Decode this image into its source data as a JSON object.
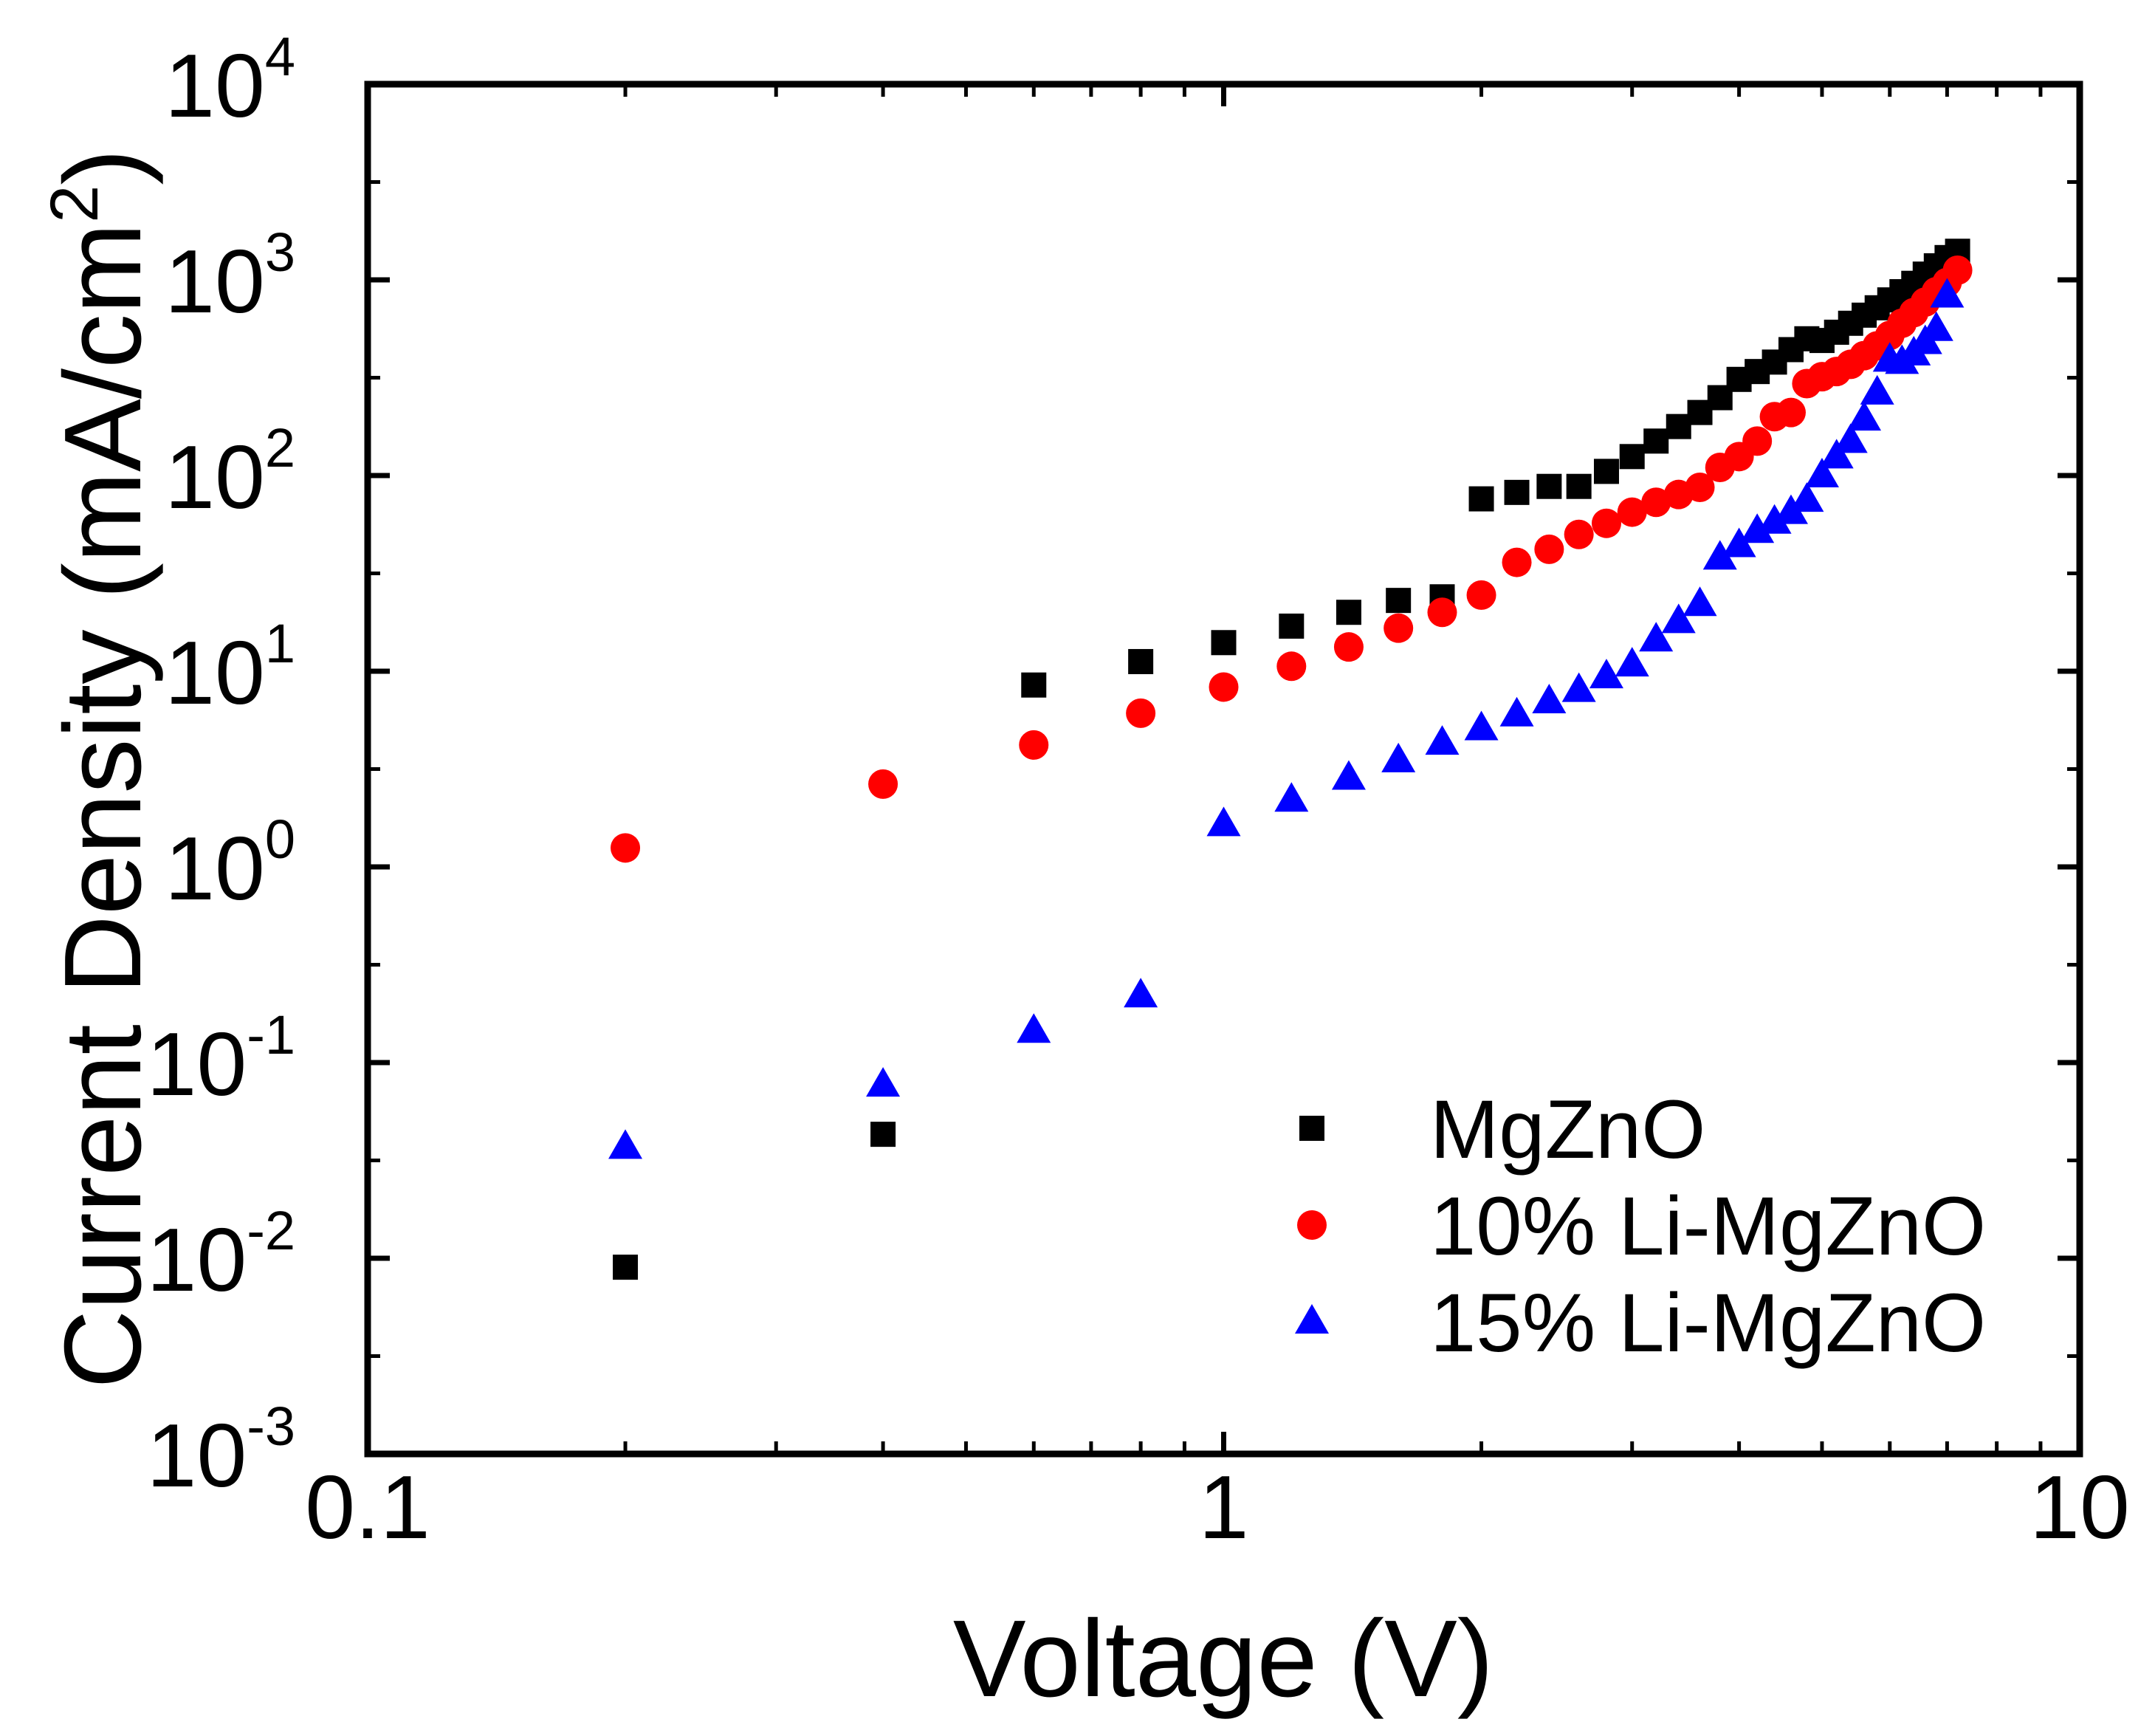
{
  "chart_data": {
    "type": "scatter",
    "title": "",
    "xlabel": "Voltage (V)",
    "ylabel": {
      "prefix": "Current Density (mA/cm",
      "superscript": "2",
      "suffix": ")"
    },
    "xscale": "log",
    "yscale": "log",
    "xlim": [
      0.1,
      10
    ],
    "ylim": [
      0.001,
      10000
    ],
    "x_ticks": [
      {
        "value": 0.1,
        "label": "0.1"
      },
      {
        "value": 1,
        "label": "1"
      },
      {
        "value": 10,
        "label": "10"
      }
    ],
    "y_ticks": [
      {
        "value": 0.001,
        "base": "10",
        "exp": "-3"
      },
      {
        "value": 0.01,
        "base": "10",
        "exp": "-2"
      },
      {
        "value": 0.1,
        "base": "10",
        "exp": "-1"
      },
      {
        "value": 1,
        "base": "10",
        "exp": "0"
      },
      {
        "value": 10,
        "base": "10",
        "exp": "1"
      },
      {
        "value": 100,
        "base": "10",
        "exp": "2"
      },
      {
        "value": 1000,
        "base": "10",
        "exp": "3"
      },
      {
        "value": 10000,
        "base": "10",
        "exp": "4"
      }
    ],
    "grid": false,
    "legend_position": "bottom-right",
    "series": [
      {
        "name": "MgZnO",
        "marker": "square",
        "color": "#000000",
        "points": [
          [
            0.2,
            0.009
          ],
          [
            0.4,
            0.043
          ],
          [
            0.6,
            8.5
          ],
          [
            0.8,
            11.2
          ],
          [
            1.0,
            14
          ],
          [
            1.2,
            17
          ],
          [
            1.4,
            20
          ],
          [
            1.6,
            23
          ],
          [
            1.8,
            24
          ],
          [
            2.0,
            76
          ],
          [
            2.2,
            82
          ],
          [
            2.4,
            88
          ],
          [
            2.6,
            88
          ],
          [
            2.8,
            105
          ],
          [
            3.0,
            125
          ],
          [
            3.2,
            150
          ],
          [
            3.4,
            178
          ],
          [
            3.6,
            210
          ],
          [
            3.8,
            250
          ],
          [
            4.0,
            310
          ],
          [
            4.2,
            340
          ],
          [
            4.4,
            380
          ],
          [
            4.6,
            440
          ],
          [
            4.8,
            500
          ],
          [
            5.0,
            490
          ],
          [
            5.2,
            540
          ],
          [
            5.4,
            600
          ],
          [
            5.6,
            660
          ],
          [
            5.8,
            720
          ],
          [
            6.0,
            790
          ],
          [
            6.2,
            870
          ],
          [
            6.4,
            960
          ],
          [
            6.6,
            1070
          ],
          [
            6.8,
            1180
          ],
          [
            7.0,
            1300
          ],
          [
            7.2,
            1400
          ]
        ]
      },
      {
        "name": "10% Li-MgZnO",
        "marker": "circle",
        "color": "#ff0000",
        "points": [
          [
            0.2,
            1.25
          ],
          [
            0.4,
            2.65
          ],
          [
            0.6,
            4.2
          ],
          [
            0.8,
            6.1
          ],
          [
            1.0,
            8.3
          ],
          [
            1.2,
            10.6
          ],
          [
            1.4,
            13.3
          ],
          [
            1.6,
            16.6
          ],
          [
            1.8,
            20
          ],
          [
            2.0,
            24.5
          ],
          [
            2.2,
            36
          ],
          [
            2.4,
            42
          ],
          [
            2.6,
            50
          ],
          [
            2.8,
            57
          ],
          [
            3.0,
            65
          ],
          [
            3.2,
            73
          ],
          [
            3.4,
            80
          ],
          [
            3.6,
            87
          ],
          [
            3.8,
            110
          ],
          [
            4.0,
            125
          ],
          [
            4.2,
            150
          ],
          [
            4.4,
            200
          ],
          [
            4.6,
            210
          ],
          [
            4.8,
            295
          ],
          [
            5.0,
            320
          ],
          [
            5.2,
            340
          ],
          [
            5.4,
            370
          ],
          [
            5.6,
            410
          ],
          [
            5.8,
            460
          ],
          [
            6.0,
            520
          ],
          [
            6.2,
            600
          ],
          [
            6.4,
            680
          ],
          [
            6.6,
            770
          ],
          [
            6.8,
            870
          ],
          [
            7.0,
            970
          ],
          [
            7.2,
            1120
          ]
        ]
      },
      {
        "name": "15% Li-MgZnO",
        "marker": "triangle",
        "color": "#0000ff",
        "points": [
          [
            0.2,
            0.037
          ],
          [
            0.4,
            0.077
          ],
          [
            0.6,
            0.145
          ],
          [
            0.8,
            0.22
          ],
          [
            1.0,
            1.65
          ],
          [
            1.2,
            2.2
          ],
          [
            1.4,
            2.85
          ],
          [
            1.6,
            3.5
          ],
          [
            1.8,
            4.3
          ],
          [
            2.0,
            5.1
          ],
          [
            2.2,
            6.0
          ],
          [
            2.4,
            7.0
          ],
          [
            2.6,
            8.0
          ],
          [
            2.8,
            9.4
          ],
          [
            3.0,
            10.8
          ],
          [
            3.2,
            14.5
          ],
          [
            3.4,
            18
          ],
          [
            3.6,
            22
          ],
          [
            3.8,
            38
          ],
          [
            4.0,
            44
          ],
          [
            4.2,
            52
          ],
          [
            4.4,
            58
          ],
          [
            4.6,
            65
          ],
          [
            4.8,
            75
          ],
          [
            5.0,
            100
          ],
          [
            5.2,
            125
          ],
          [
            5.4,
            150
          ],
          [
            5.6,
            195
          ],
          [
            5.8,
            265
          ],
          [
            6.0,
            390
          ],
          [
            6.2,
            380
          ],
          [
            6.4,
            420
          ],
          [
            6.6,
            480
          ],
          [
            6.8,
            560
          ],
          [
            7.0,
            830
          ]
        ]
      }
    ]
  }
}
